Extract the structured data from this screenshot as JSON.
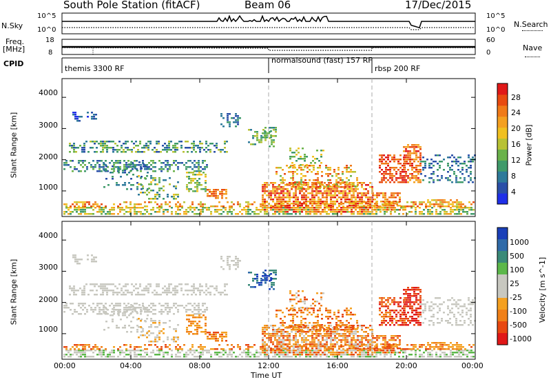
{
  "header": {
    "station": "South Pole Station (fitACF)",
    "beam": "Beam 06",
    "date": "17/Dec/2015"
  },
  "panels": {
    "nsky": {
      "label": "N.Sky",
      "ticks": [
        "10^5",
        "10^0"
      ],
      "right_label": "N.Search",
      "right_ticks": [
        "10^5",
        "10^0"
      ]
    },
    "freq": {
      "label_line1": "Freq.",
      "label_line2": "[MHz]",
      "ticks": [
        "18",
        "8"
      ],
      "right_label": "Nave",
      "right_ticks": [
        "60",
        "0"
      ]
    },
    "cpid": {
      "label": "CPID",
      "modes": [
        "themis 3300 RF",
        "normalsound (fast) 157 RF",
        "rbsp 200 RF"
      ]
    }
  },
  "chart_data": [
    {
      "type": "heatmap",
      "name": "power",
      "ylabel": "Slant Range [km]",
      "xlabel": "Time UT",
      "yticks": [
        "4000",
        "3000",
        "2000",
        "1000"
      ],
      "ylim": [
        180,
        4600
      ],
      "xticks": [
        "00:00",
        "04:00",
        "08:00",
        "12:00",
        "16:00",
        "20:00",
        "00:00"
      ],
      "xlim_hours": [
        0,
        24
      ],
      "mode_changes_hours": [
        12.0,
        18.0
      ],
      "colorbar": {
        "label": "Power [dB]",
        "ticks": [
          "28",
          "24",
          "20",
          "16",
          "12",
          "8",
          "4"
        ],
        "range": [
          0,
          30
        ],
        "colors": [
          "#1f2fe8",
          "#2a4fa8",
          "#2e7a9a",
          "#3f9a6a",
          "#6ab24a",
          "#b8c234",
          "#f0c020",
          "#f4a020",
          "#f07a18",
          "#e84a10",
          "#e01818"
        ]
      }
    },
    {
      "type": "heatmap",
      "name": "velocity",
      "ylabel": "Slant Range [km]",
      "xlabel": "Time UT",
      "yticks": [
        "4000",
        "3000",
        "2000",
        "1000"
      ],
      "ylim": [
        180,
        4600
      ],
      "xticks": [
        "00:00",
        "04:00",
        "08:00",
        "12:00",
        "16:00",
        "20:00",
        "00:00"
      ],
      "xlim_hours": [
        0,
        24
      ],
      "colorbar": {
        "label": "Velocity [m s^-1]",
        "ticks": [
          "1000",
          "500",
          "100",
          "25",
          "-25",
          "-100",
          "-500",
          "-1000"
        ],
        "colors": [
          "#1a3fb8",
          "#2f6aa8",
          "#3a8a78",
          "#5cb84a",
          "#c8c8c0",
          "#c8c8c0",
          "#f4a020",
          "#f08018",
          "#e84810",
          "#e01818"
        ]
      }
    }
  ]
}
